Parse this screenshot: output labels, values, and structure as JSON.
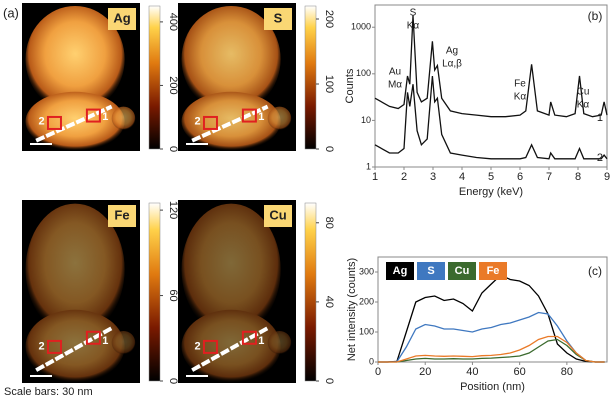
{
  "panel_a": {
    "label": "(a)",
    "note": "Scale bars: 30 nm",
    "point_labels": [
      "1",
      "2"
    ],
    "maps": [
      {
        "element": "Ag",
        "clim": [
          0,
          450
        ],
        "cticks": [
          0,
          200,
          400
        ]
      },
      {
        "element": "S",
        "clim": [
          0,
          220
        ],
        "cticks": [
          0,
          100,
          200
        ]
      },
      {
        "element": "Fe",
        "clim": [
          0,
          125
        ],
        "cticks": [
          0,
          60,
          120
        ]
      },
      {
        "element": "Cu",
        "clim": [
          0,
          90
        ],
        "cticks": [
          0,
          40,
          80
        ]
      }
    ]
  },
  "chart_data": [
    {
      "type": "line",
      "title": "(b)",
      "xlabel": "Energy (keV)",
      "ylabel": "Counts",
      "log_y": true,
      "xlim": [
        1,
        9
      ],
      "xticks": [
        1,
        2,
        3,
        4,
        5,
        6,
        7,
        8,
        9
      ],
      "ylim": [
        1,
        3000
      ],
      "yticks": [
        1,
        10,
        100,
        1000
      ],
      "annotations": [
        [
          "Au",
          "Mα"
        ],
        [
          "S",
          "Kα"
        ],
        [
          "Ag",
          "Lα,β"
        ],
        [
          "Fe",
          "Kα"
        ],
        [
          "Cu",
          "Kα"
        ]
      ],
      "x": [
        1,
        1.5,
        1.8,
        2.0,
        2.12,
        2.2,
        2.31,
        2.45,
        2.6,
        2.8,
        2.98,
        3.06,
        3.15,
        3.3,
        3.6,
        4,
        4.5,
        5,
        5.5,
        6,
        6.2,
        6.4,
        6.6,
        7,
        7.06,
        7.2,
        7.6,
        7.9,
        8.05,
        8.2,
        8.5,
        8.8,
        8.9,
        9
      ],
      "series": [
        {
          "name": "1",
          "color": "#111111",
          "values": [
            30,
            20,
            18,
            22,
            90,
            60,
            1800,
            40,
            25,
            30,
            500,
            120,
            150,
            30,
            16,
            14,
            13,
            12,
            12,
            13,
            16,
            160,
            16,
            13,
            25,
            13,
            12,
            14,
            90,
            14,
            12,
            13,
            25,
            13
          ]
        },
        {
          "name": "2",
          "color": "#111111",
          "values": [
            3,
            2,
            2,
            2.5,
            40,
            20,
            60,
            6,
            3,
            4,
            90,
            25,
            30,
            5,
            2,
            1.8,
            1.6,
            1.5,
            1.5,
            1.5,
            1.6,
            3,
            1.6,
            1.5,
            2,
            1.5,
            1.5,
            1.5,
            2.5,
            1.5,
            1.5,
            1.5,
            1.8,
            1.5
          ]
        }
      ]
    },
    {
      "type": "line",
      "title": "(c)",
      "xlabel": "Position (nm)",
      "ylabel": "Net intensity (counts)",
      "xlim": [
        0,
        97
      ],
      "xticks": [
        0,
        20,
        40,
        60,
        80
      ],
      "ylim": [
        0,
        350
      ],
      "yticks": [
        0,
        100,
        200,
        300
      ],
      "x": [
        0,
        4,
        8,
        12,
        16,
        20,
        24,
        28,
        32,
        36,
        40,
        44,
        48,
        52,
        56,
        60,
        64,
        68,
        72,
        76,
        80,
        84,
        88,
        92,
        96
      ],
      "series": [
        {
          "name": "Ag",
          "color": "#000000",
          "values": [
            0,
            0,
            2,
            100,
            200,
            215,
            220,
            205,
            210,
            195,
            170,
            230,
            260,
            290,
            275,
            270,
            255,
            220,
            160,
            60,
            30,
            10,
            2,
            0,
            0
          ]
        },
        {
          "name": "S",
          "color": "#3f78c0",
          "values": [
            0,
            0,
            1,
            50,
            110,
            125,
            120,
            110,
            110,
            105,
            100,
            110,
            115,
            125,
            130,
            140,
            150,
            165,
            160,
            120,
            70,
            30,
            5,
            0,
            0
          ]
        },
        {
          "name": "Cu",
          "color": "#3b6a2e",
          "values": [
            0,
            0,
            0,
            5,
            10,
            12,
            10,
            10,
            11,
            10,
            10,
            12,
            13,
            15,
            17,
            20,
            30,
            50,
            70,
            75,
            55,
            25,
            5,
            0,
            0
          ]
        },
        {
          "name": "Fe",
          "color": "#ea7a28",
          "values": [
            0,
            0,
            0,
            10,
            20,
            22,
            20,
            19,
            20,
            19,
            18,
            21,
            22,
            25,
            30,
            40,
            55,
            75,
            85,
            85,
            65,
            30,
            5,
            0,
            0
          ]
        }
      ]
    }
  ]
}
